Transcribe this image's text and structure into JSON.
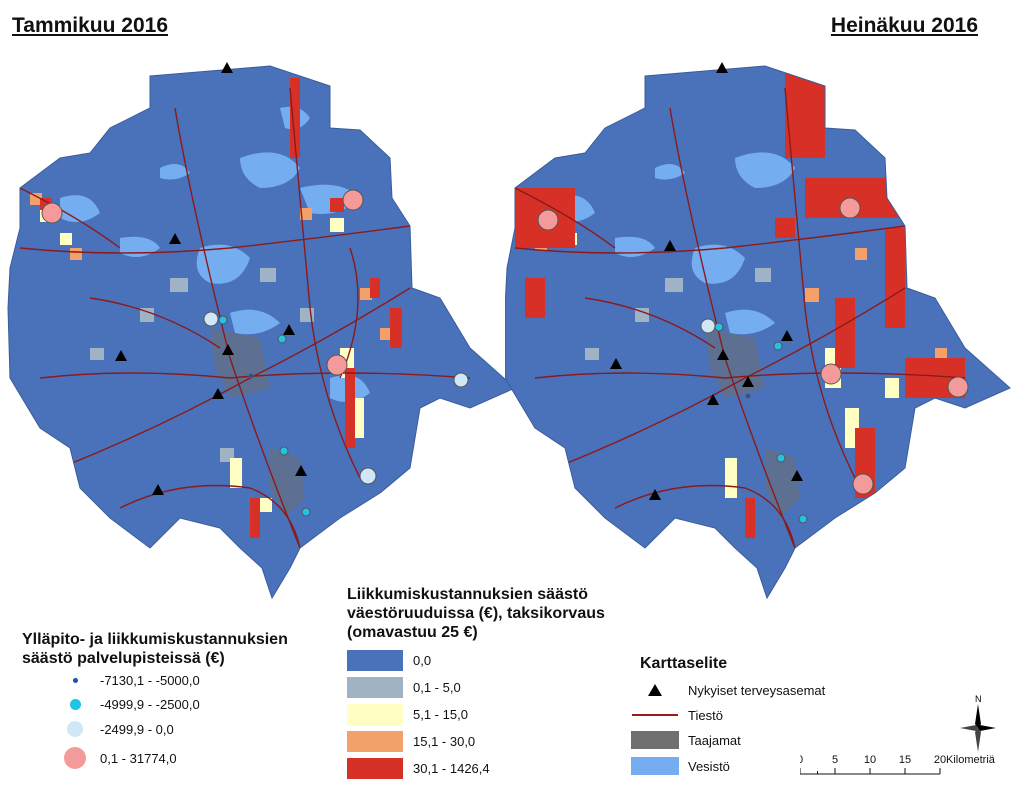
{
  "maps": {
    "left_title": "Tammikuu 2016",
    "right_title": "Heinäkuu 2016"
  },
  "service_point_legend": {
    "title": "Ylläpito- ja liikkumiskustannuksien säästö palvelupisteissä (€)",
    "classes": [
      {
        "label": "-7130,1 - -5000,0",
        "color": "#1f4fb0",
        "symbol": "small-dot"
      },
      {
        "label": "-4999,9 - -2500,0",
        "color": "#22c3e6",
        "symbol": "medium-circle"
      },
      {
        "label": "-2499,9 - 0,0",
        "color": "#cfe7f7",
        "symbol": "large-circle"
      },
      {
        "label": "0,1 - 31774,0",
        "color": "#f59a9a",
        "symbol": "xlarge-circle"
      }
    ]
  },
  "grid_legend": {
    "title": "Liikkumiskustannuksien säästö väestöruuduissa (€), taksikorvaus (omavastuu 25 €)",
    "classes": [
      {
        "label": "0,0",
        "color": "#4a72bb"
      },
      {
        "label": "0,1 - 5,0",
        "color": "#9fb3c4"
      },
      {
        "label": "5,1 - 15,0",
        "color": "#ffffc3"
      },
      {
        "label": "15,1 - 30,0",
        "color": "#f4a06b"
      },
      {
        "label": "30,1 - 1426,4",
        "color": "#d73027"
      }
    ]
  },
  "map_key": {
    "title": "Karttaselite",
    "items": [
      {
        "label": "Nykyiset terveysasemat",
        "icon": "black-triangle-icon"
      },
      {
        "label": "Tiestö",
        "icon": "road-line-icon",
        "color": "#9b1b1b"
      },
      {
        "label": "Taajamat",
        "icon": "gray-box-icon",
        "color": "#707070"
      },
      {
        "label": "Vesistö",
        "icon": "blue-box-icon",
        "color": "#74aef0"
      }
    ]
  },
  "scale_bar": {
    "ticks": [
      "0",
      "5",
      "10",
      "15",
      "20"
    ],
    "unit": "Kilometriä"
  },
  "north_arrow": {
    "label": "N"
  }
}
